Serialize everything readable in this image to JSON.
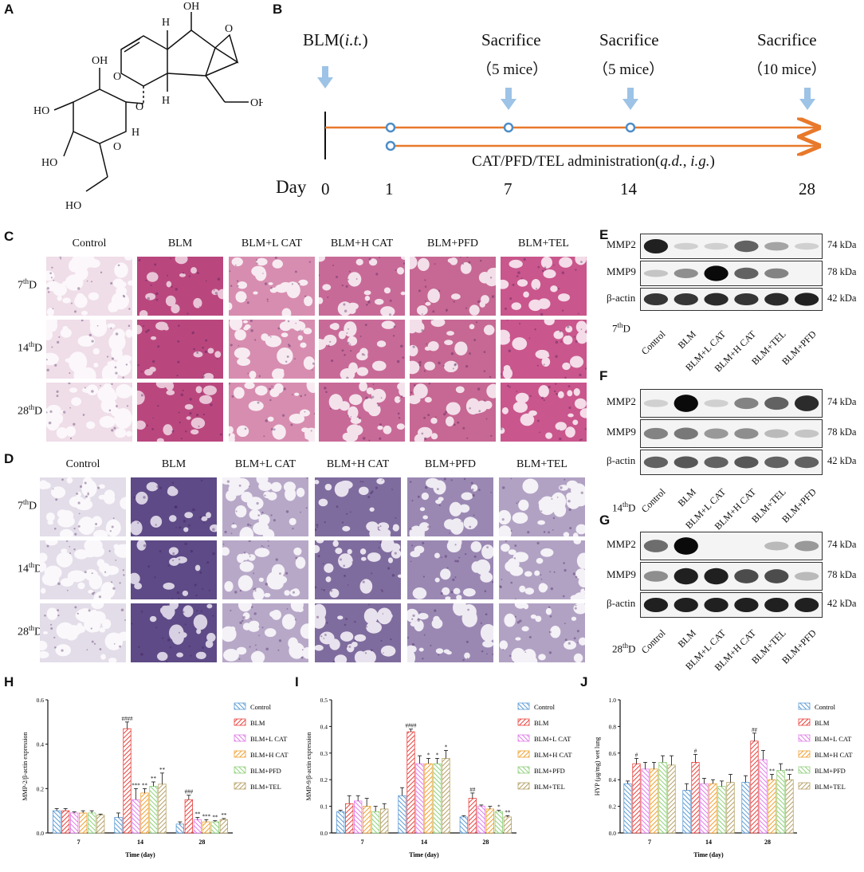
{
  "panels": {
    "A": "A",
    "B": "B",
    "C": "C",
    "D": "D",
    "E": "E",
    "F": "F",
    "G": "G",
    "H": "H",
    "I": "I",
    "J": "J"
  },
  "timeline": {
    "blm_label": "BLM(",
    "blm_italic": "i.t.",
    "blm_close": ")",
    "sacrifices": [
      {
        "title": "Sacrifice",
        "count": "（5 mice）"
      },
      {
        "title": "Sacrifice",
        "count": "（5 mice）"
      },
      {
        "title": "Sacrifice",
        "count": "（10 mice）"
      }
    ],
    "admin_pre": "CAT/PFD/TEL administration(",
    "admin_qd": "q.d.",
    "admin_sep": ", ",
    "admin_ig": "i.g.",
    "admin_close": ")",
    "day_label": "Day",
    "days": [
      "0",
      "1",
      "7",
      "14",
      "28"
    ],
    "colors": {
      "arrow": "#E8792B",
      "marker": "#4E8DC8",
      "drop": "#9DC3E6"
    }
  },
  "histology": {
    "groups_C": [
      "Control",
      "BLM",
      "BLM+L CAT",
      "BLM+H CAT",
      "BLM+PFD",
      "BLM+TEL"
    ],
    "groups_D": [
      "Control",
      "BLM",
      "BLM+L CAT",
      "BLM+H CAT",
      "BLM+PFD",
      "BLM+TEL"
    ],
    "rows": [
      {
        "num": "7",
        "sup": "th",
        "suf": "D"
      },
      {
        "num": "14",
        "sup": "th",
        "suf": "D"
      },
      {
        "num": "28",
        "sup": "th",
        "suf": "D"
      }
    ]
  },
  "blots": {
    "E": {
      "proteins": [
        "MMP2",
        "MMP9",
        "β-actin"
      ],
      "kda": [
        "74 kDa",
        "78 kDa",
        "42 kDa"
      ],
      "day": {
        "num": "7",
        "sup": "th",
        "suf": "D"
      },
      "lanes": [
        "Control",
        "BLM",
        "BLM+L CAT",
        "BLM+H CAT",
        "BLM+TEL",
        "BLM+PFD"
      ]
    },
    "F": {
      "proteins": [
        "MMP2",
        "MMP9",
        "β-actin"
      ],
      "kda": [
        "74 kDa",
        "78 kDa",
        "42 kDa"
      ],
      "day": {
        "num": "14",
        "sup": "th",
        "suf": "D"
      },
      "lanes": [
        "Control",
        "BLM",
        "BLM+L CAT",
        "BLM+H CAT",
        "BLM+TEL",
        "BLM+PFD"
      ]
    },
    "G": {
      "proteins": [
        "MMP2",
        "MMP9",
        "β-actin"
      ],
      "kda": [
        "74 kDa",
        "78 kDa",
        "42 kDa"
      ],
      "day": {
        "num": "28",
        "sup": "th",
        "suf": "D"
      },
      "lanes": [
        "Control",
        "BLM",
        "BLM+L CAT",
        "BLM+H CAT",
        "BLM+TEL",
        "BLM+PFD"
      ]
    }
  },
  "chart_data": [
    {
      "type": "bar",
      "panel": "H",
      "ylabel": "MMP-2/β-actin expression",
      "xlabel": "Time (day)",
      "categories": [
        "7",
        "14",
        "28"
      ],
      "ylim": [
        0,
        0.6
      ],
      "yticks": [
        "0.0",
        "0.2",
        "0.4",
        "0.6"
      ],
      "series": [
        {
          "name": "Control",
          "values": [
            0.1,
            0.07,
            0.04
          ],
          "err": [
            0.01,
            0.02,
            0.01
          ],
          "color": "#5B9BD5"
        },
        {
          "name": "BLM",
          "values": [
            0.1,
            0.47,
            0.15
          ],
          "err": [
            0.01,
            0.03,
            0.02
          ],
          "color": "#E8413C"
        },
        {
          "name": "BLM+L CAT",
          "values": [
            0.09,
            0.15,
            0.06
          ],
          "err": [
            0.005,
            0.05,
            0.01
          ],
          "color": "#E07CE8"
        },
        {
          "name": "BLM+H CAT",
          "values": [
            0.09,
            0.18,
            0.05
          ],
          "err": [
            0.01,
            0.02,
            0.01
          ],
          "color": "#F0A030"
        },
        {
          "name": "BLM+PFD",
          "values": [
            0.09,
            0.21,
            0.05
          ],
          "err": [
            0.01,
            0.02,
            0.005
          ],
          "color": "#8FD17A"
        },
        {
          "name": "BLM+TEL",
          "values": [
            0.08,
            0.22,
            0.06
          ],
          "err": [
            0.005,
            0.05,
            0.005
          ],
          "color": "#B5A065"
        }
      ],
      "annotations": [
        {
          "cat": 1,
          "series": 1,
          "text": "####"
        },
        {
          "cat": 1,
          "series": 2,
          "text": "***"
        },
        {
          "cat": 1,
          "series": 3,
          "text": "**"
        },
        {
          "cat": 1,
          "series": 4,
          "text": "**"
        },
        {
          "cat": 1,
          "series": 5,
          "text": "**"
        },
        {
          "cat": 2,
          "series": 1,
          "text": "###"
        },
        {
          "cat": 2,
          "series": 2,
          "text": "**"
        },
        {
          "cat": 2,
          "series": 3,
          "text": "***"
        },
        {
          "cat": 2,
          "series": 4,
          "text": "**"
        },
        {
          "cat": 2,
          "series": 5,
          "text": "**"
        }
      ]
    },
    {
      "type": "bar",
      "panel": "I",
      "ylabel": "MMP-9/β-actin expression",
      "xlabel": "Time (day)",
      "categories": [
        "7",
        "14",
        "28"
      ],
      "ylim": [
        0,
        0.5
      ],
      "yticks": [
        "0.0",
        "0.1",
        "0.2",
        "0.3",
        "0.4",
        "0.5"
      ],
      "series": [
        {
          "name": "Control",
          "values": [
            0.08,
            0.14,
            0.06
          ],
          "err": [
            0.005,
            0.03,
            0.005
          ],
          "color": "#5B9BD5"
        },
        {
          "name": "BLM",
          "values": [
            0.11,
            0.38,
            0.13
          ],
          "err": [
            0.03,
            0.01,
            0.02
          ],
          "color": "#E8413C"
        },
        {
          "name": "BLM+L CAT",
          "values": [
            0.12,
            0.26,
            0.1
          ],
          "err": [
            0.02,
            0.03,
            0.005
          ],
          "color": "#E07CE8"
        },
        {
          "name": "BLM+H CAT",
          "values": [
            0.1,
            0.26,
            0.09
          ],
          "err": [
            0.03,
            0.02,
            0.01
          ],
          "color": "#F0A030"
        },
        {
          "name": "BLM+PFD",
          "values": [
            0.08,
            0.26,
            0.08
          ],
          "err": [
            0.02,
            0.02,
            0.005
          ],
          "color": "#8FD17A"
        },
        {
          "name": "BLM+TEL",
          "values": [
            0.09,
            0.28,
            0.06
          ],
          "err": [
            0.02,
            0.03,
            0.005
          ],
          "color": "#B5A065"
        }
      ],
      "annotations": [
        {
          "cat": 1,
          "series": 1,
          "text": "####"
        },
        {
          "cat": 1,
          "series": 3,
          "text": "*"
        },
        {
          "cat": 1,
          "series": 4,
          "text": "*"
        },
        {
          "cat": 1,
          "series": 5,
          "text": "*"
        },
        {
          "cat": 2,
          "series": 1,
          "text": "##"
        },
        {
          "cat": 2,
          "series": 4,
          "text": "*"
        },
        {
          "cat": 2,
          "series": 5,
          "text": "**"
        }
      ]
    },
    {
      "type": "bar",
      "panel": "J",
      "ylabel": "HYP (μg/mg) wet lung",
      "xlabel": "Time (day)",
      "categories": [
        "7",
        "14",
        "28"
      ],
      "ylim": [
        0,
        1.0
      ],
      "yticks": [
        "0.0",
        "0.2",
        "0.4",
        "0.6",
        "0.8",
        "1.0"
      ],
      "series": [
        {
          "name": "Control",
          "values": [
            0.37,
            0.32,
            0.38
          ],
          "err": [
            0.02,
            0.05,
            0.05
          ],
          "color": "#5B9BD5"
        },
        {
          "name": "BLM",
          "values": [
            0.52,
            0.53,
            0.69
          ],
          "err": [
            0.04,
            0.06,
            0.06
          ],
          "color": "#E8413C"
        },
        {
          "name": "BLM+L CAT",
          "values": [
            0.48,
            0.37,
            0.55
          ],
          "err": [
            0.05,
            0.04,
            0.07
          ],
          "color": "#E07CE8"
        },
        {
          "name": "BLM+H CAT",
          "values": [
            0.48,
            0.37,
            0.4
          ],
          "err": [
            0.05,
            0.03,
            0.04
          ],
          "color": "#F0A030"
        },
        {
          "name": "BLM+PFD",
          "values": [
            0.53,
            0.35,
            0.47
          ],
          "err": [
            0.05,
            0.04,
            0.05
          ],
          "color": "#8FD17A"
        },
        {
          "name": "BLM+TEL",
          "values": [
            0.51,
            0.38,
            0.4
          ],
          "err": [
            0.07,
            0.06,
            0.04
          ],
          "color": "#B5A065"
        }
      ],
      "annotations": [
        {
          "cat": 0,
          "series": 1,
          "text": "#"
        },
        {
          "cat": 1,
          "series": 1,
          "text": "#"
        },
        {
          "cat": 2,
          "series": 1,
          "text": "##"
        },
        {
          "cat": 2,
          "series": 3,
          "text": "**"
        },
        {
          "cat": 2,
          "series": 5,
          "text": "***"
        }
      ]
    }
  ]
}
